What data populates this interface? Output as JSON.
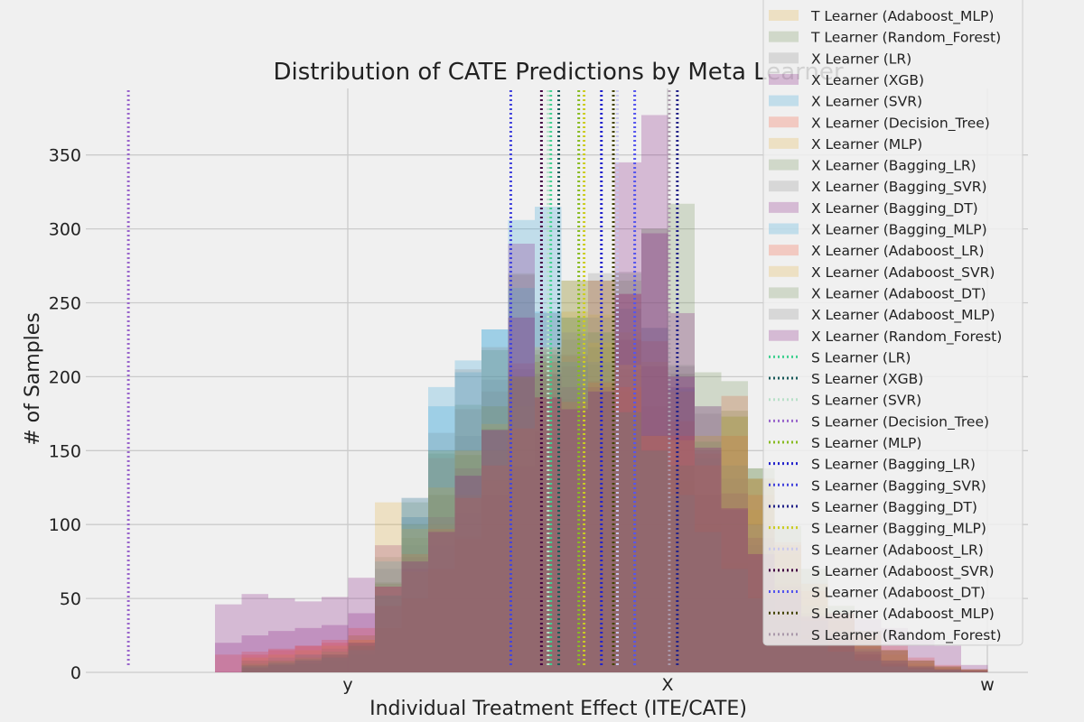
{
  "chart_data": {
    "type": "histogram",
    "title": "Distribution of CATE Predictions by Meta Learner",
    "xlabel": "Individual Treatment Effect (ITE/CATE)",
    "ylabel": "# of Samples",
    "ylim": [
      0,
      395
    ],
    "yticks": [
      0,
      50,
      100,
      150,
      200,
      250,
      300,
      350
    ],
    "xticks": [
      "y",
      "X",
      "w"
    ],
    "grid": true,
    "legend_position": "upper-right",
    "bins": 30,
    "histogram_series": [
      {
        "name": "T Learner (Adaboost_MLP)",
        "color": "#e5ae38",
        "counts": [
          0,
          0,
          8,
          6,
          5,
          8,
          10,
          28,
          45,
          66,
          92,
          120,
          140,
          160,
          180,
          170,
          150,
          125,
          100,
          75,
          55,
          38,
          26,
          18,
          12,
          8,
          5,
          3,
          2,
          1
        ]
      },
      {
        "name": "T Learner (Random_Forest)",
        "color": "#6d904f",
        "counts": [
          0,
          0,
          4,
          6,
          8,
          10,
          20,
          61,
          115,
          148,
          181,
          218,
          200,
          190,
          185,
          208,
          190,
          160,
          202,
          120,
          177,
          138,
          99,
          70,
          45,
          28,
          15,
          8,
          4,
          2
        ]
      },
      {
        "name": "X Learner (LR)",
        "color": "#8b8b8b",
        "counts": [
          0,
          0,
          5,
          8,
          10,
          12,
          18,
          60,
          86,
          120,
          160,
          198,
          205,
          200,
          215,
          270,
          205,
          180,
          130,
          100,
          74,
          52,
          38,
          25,
          18,
          12,
          8,
          5,
          3,
          2
        ]
      },
      {
        "name": "X Learner (XGB)",
        "color": "#810f7c",
        "counts": [
          0,
          46,
          53,
          50,
          48,
          51,
          64,
          86,
          78,
          86,
          108,
          120,
          139,
          163,
          207,
          197,
          225,
          207,
          193,
          150,
          110,
          80,
          60,
          40,
          22,
          12,
          6,
          3,
          2,
          1
        ]
      },
      {
        "name": "X Learner (SVR)",
        "color": "#30a2da",
        "counts": [
          0,
          0,
          2,
          4,
          6,
          8,
          12,
          75,
          118,
          193,
          211,
          232,
          306,
          315,
          240,
          220,
          246,
          233,
          192,
          145,
          110,
          76,
          50,
          30,
          18,
          10,
          5,
          3,
          2,
          1
        ]
      },
      {
        "name": "X Learner (Decision_Tree)",
        "color": "#fc4f30",
        "counts": [
          0,
          0,
          12,
          15,
          18,
          20,
          22,
          30,
          50,
          70,
          90,
          130,
          209,
          210,
          214,
          265,
          256,
          224,
          170,
          148,
          187,
          131,
          86,
          60,
          40,
          25,
          15,
          8,
          4,
          2
        ]
      },
      {
        "name": "X Learner (MLP)",
        "color": "#e5ae38",
        "counts": [
          0,
          0,
          10,
          12,
          15,
          18,
          25,
          45,
          68,
          100,
          120,
          150,
          180,
          200,
          265,
          242,
          230,
          210,
          190,
          160,
          140,
          110,
          80,
          55,
          35,
          20,
          12,
          6,
          3,
          1
        ]
      },
      {
        "name": "X Learner (Bagging_LR)",
        "color": "#6d904f",
        "counts": [
          0,
          0,
          4,
          5,
          6,
          10,
          20,
          60,
          91,
          120,
          150,
          165,
          199,
          210,
          240,
          265,
          265,
          300,
          317,
          203,
          173,
          131,
          70,
          40,
          25,
          15,
          8,
          4,
          2,
          1
        ]
      },
      {
        "name": "X Learner (Bagging_SVR)",
        "color": "#8b8b8b",
        "counts": [
          0,
          0,
          6,
          8,
          12,
          16,
          25,
          78,
          105,
          162,
          178,
          190,
          269,
          218,
          225,
          240,
          271,
          233,
          207,
          175,
          131,
          86,
          55,
          35,
          20,
          12,
          6,
          3,
          2,
          1
        ]
      },
      {
        "name": "X Learner (Bagging_DT)",
        "color": "#810f7c",
        "counts": [
          0,
          0,
          3,
          5,
          8,
          12,
          20,
          45,
          70,
          105,
          138,
          164,
          290,
          202,
          193,
          193,
          345,
          377,
          243,
          180,
          121,
          91,
          58,
          37,
          24,
          14,
          8,
          4,
          2,
          1
        ]
      },
      {
        "name": "X Learner (Bagging_MLP)",
        "color": "#30a2da",
        "counts": [
          0,
          0,
          4,
          6,
          8,
          10,
          15,
          52,
          105,
          180,
          203,
          232,
          260,
          244,
          210,
          190,
          176,
          150,
          120,
          95,
          70,
          50,
          35,
          22,
          14,
          8,
          4,
          2,
          1,
          0
        ]
      },
      {
        "name": "X Learner (Adaboost_LR)",
        "color": "#fc4f30",
        "counts": [
          0,
          12,
          14,
          16,
          18,
          22,
          30,
          58,
          80,
          97,
          118,
          140,
          165,
          186,
          183,
          196,
          193,
          160,
          160,
          140,
          160,
          120,
          88,
          55,
          40,
          28,
          18,
          10,
          5,
          2
        ]
      },
      {
        "name": "X Learner (Adaboost_SVR)",
        "color": "#e5ae38",
        "counts": [
          0,
          0,
          6,
          8,
          10,
          14,
          22,
          115,
          97,
          125,
          150,
          168,
          200,
          220,
          244,
          223,
          208,
          160,
          157,
          160,
          173,
          131,
          86,
          60,
          40,
          25,
          15,
          8,
          4,
          2
        ]
      },
      {
        "name": "X Learner (Adaboost_DT)",
        "color": "#6d904f",
        "counts": [
          0,
          0,
          5,
          7,
          9,
          12,
          18,
          52,
          100,
          150,
          147,
          180,
          200,
          215,
          265,
          230,
          176,
          150,
          140,
          156,
          197,
          138,
          99,
          70,
          45,
          28,
          15,
          8,
          4,
          2
        ]
      },
      {
        "name": "X Learner (Adaboost_MLP)",
        "color": "#8b8b8b",
        "counts": [
          0,
          0,
          8,
          10,
          12,
          14,
          20,
          70,
          118,
          145,
          205,
          220,
          270,
          243,
          230,
          210,
          270,
          300,
          208,
          180,
          140,
          100,
          70,
          45,
          28,
          16,
          8,
          4,
          2,
          1
        ]
      },
      {
        "name": "X Learner (Random_Forest)",
        "color": "#810f7c",
        "counts": [
          0,
          20,
          25,
          28,
          30,
          32,
          40,
          58,
          75,
          95,
          133,
          164,
          240,
          186,
          178,
          190,
          256,
          297,
          200,
          152,
          111,
          80,
          55,
          38,
          40,
          36,
          30,
          22,
          18,
          5
        ]
      }
    ],
    "vline_series": [
      {
        "name": "S Learner (LR)",
        "color": "#40d090",
        "x_bin": 13.6
      },
      {
        "name": "S Learner (XGB)",
        "color": "#1a5a5a",
        "x_bin": 13.9
      },
      {
        "name": "S Learner (SVR)",
        "color": "#b8e0c8",
        "x_bin": 13.5
      },
      {
        "name": "S Learner (Decision_Tree)",
        "color": "#9966cc",
        "x_bin": -2.25
      },
      {
        "name": "S Learner (MLP)",
        "color": "#88bb22",
        "x_bin": 14.65
      },
      {
        "name": "S Learner (Bagging_LR)",
        "color": "#2222cc",
        "x_bin": 15.5
      },
      {
        "name": "S Learner (Bagging_SVR)",
        "color": "#4444dd",
        "x_bin": 12.1
      },
      {
        "name": "S Learner (Bagging_DT)",
        "color": "#222288",
        "x_bin": 18.35
      },
      {
        "name": "S Learner (Bagging_MLP)",
        "color": "#cccc22",
        "x_bin": 14.85
      },
      {
        "name": "S Learner (Adaboost_LR)",
        "color": "#c8c8ee",
        "x_bin": 16.1
      },
      {
        "name": "S Learner (Adaboost_SVR)",
        "color": "#440044",
        "x_bin": 13.25
      },
      {
        "name": "S Learner (Adaboost_DT)",
        "color": "#5555ee",
        "x_bin": 16.75
      },
      {
        "name": "S Learner (Adaboost_MLP)",
        "color": "#444400",
        "x_bin": 15.95
      },
      {
        "name": "S Learner (Random_Forest)",
        "color": "#aa99aa",
        "x_bin": 18.05
      }
    ]
  }
}
